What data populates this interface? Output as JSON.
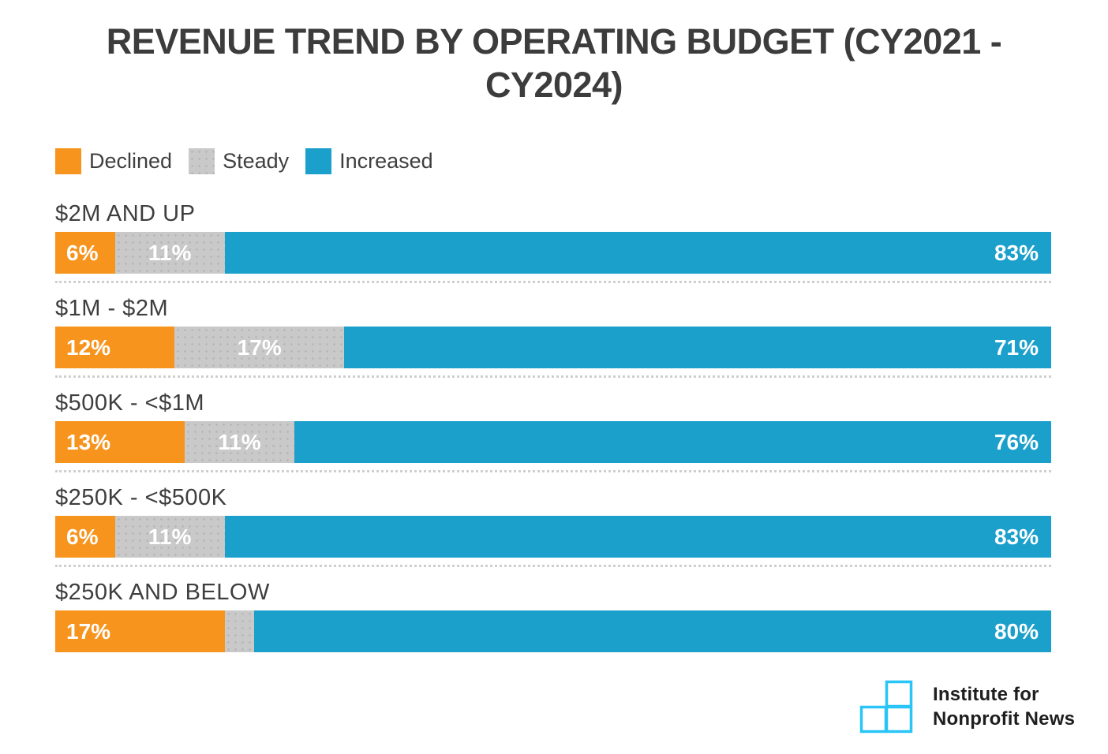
{
  "title": "REVENUE TREND BY OPERATING BUDGET (CY2021 - CY2024)",
  "colors": {
    "declined": "#F7941D",
    "steady": "#C9C9C9",
    "steady_dot": "#B7B7B7",
    "increased": "#1BA0CC",
    "title_text": "#3C3C3C",
    "logo_accent": "#29C5F6"
  },
  "legend": {
    "items": [
      {
        "key": "declined",
        "label": "Declined"
      },
      {
        "key": "steady",
        "label": "Steady"
      },
      {
        "key": "increased",
        "label": "Increased"
      }
    ]
  },
  "chart_data": {
    "type": "bar",
    "orientation": "horizontal",
    "stacked": true,
    "units": "percent",
    "title": "REVENUE TREND BY OPERATING BUDGET (CY2021 - CY2024)",
    "xlim": [
      0,
      100
    ],
    "legend_position": "top-left",
    "grid": false,
    "categories": [
      "$2M AND UP",
      "$1M - $2M",
      "$500K - <$1M",
      "$250K - <$500K",
      "$250K AND BELOW"
    ],
    "series": [
      {
        "key": "declined",
        "name": "Declined",
        "values": [
          6,
          12,
          13,
          6,
          17
        ]
      },
      {
        "key": "steady",
        "name": "Steady",
        "values": [
          11,
          17,
          11,
          11,
          3
        ]
      },
      {
        "key": "increased",
        "name": "Increased",
        "values": [
          83,
          71,
          76,
          83,
          80
        ]
      }
    ],
    "value_labels": [
      [
        "6%",
        "11%",
        "83%"
      ],
      [
        "12%",
        "17%",
        "71%"
      ],
      [
        "13%",
        "11%",
        "76%"
      ],
      [
        "6%",
        "11%",
        "83%"
      ],
      [
        "17%",
        "",
        "80%"
      ]
    ]
  },
  "footer": {
    "logo_line1": "Institute for",
    "logo_line2": "Nonprofit News"
  }
}
